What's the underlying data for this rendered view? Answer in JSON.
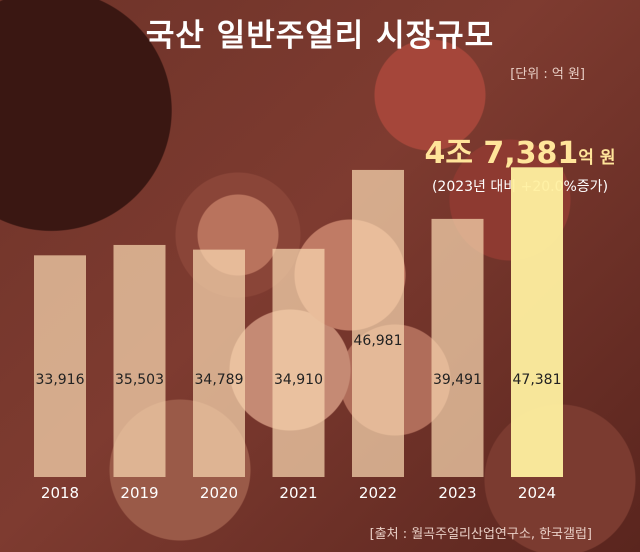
{
  "title": "국산 일반주얼리 시장규모",
  "unit_note": "[단위 : 억 원]",
  "highlight": {
    "value": "4조 7,381",
    "unit": "억 원",
    "comparison": "(2023년 대비 +20.0%증가)"
  },
  "source": "[출처 : 월곡주얼리산업연구소, 한국갤럽]",
  "colors": {
    "bar": "#f8d7b0",
    "bar_highlight": "#fff0a0",
    "label_text": "#222222",
    "axis_text": "#ffffff"
  },
  "chart_data": {
    "type": "bar",
    "categories": [
      "2018",
      "2019",
      "2020",
      "2021",
      "2022",
      "2023",
      "2024"
    ],
    "values": [
      33916,
      35503,
      34789,
      34910,
      46981,
      39491,
      47381
    ],
    "value_labels": [
      "33,916",
      "35,503",
      "34,789",
      "34,910",
      "46,981",
      "39,491",
      "47,381"
    ],
    "highlight_index": 6,
    "ylim": [
      0,
      48500
    ]
  }
}
